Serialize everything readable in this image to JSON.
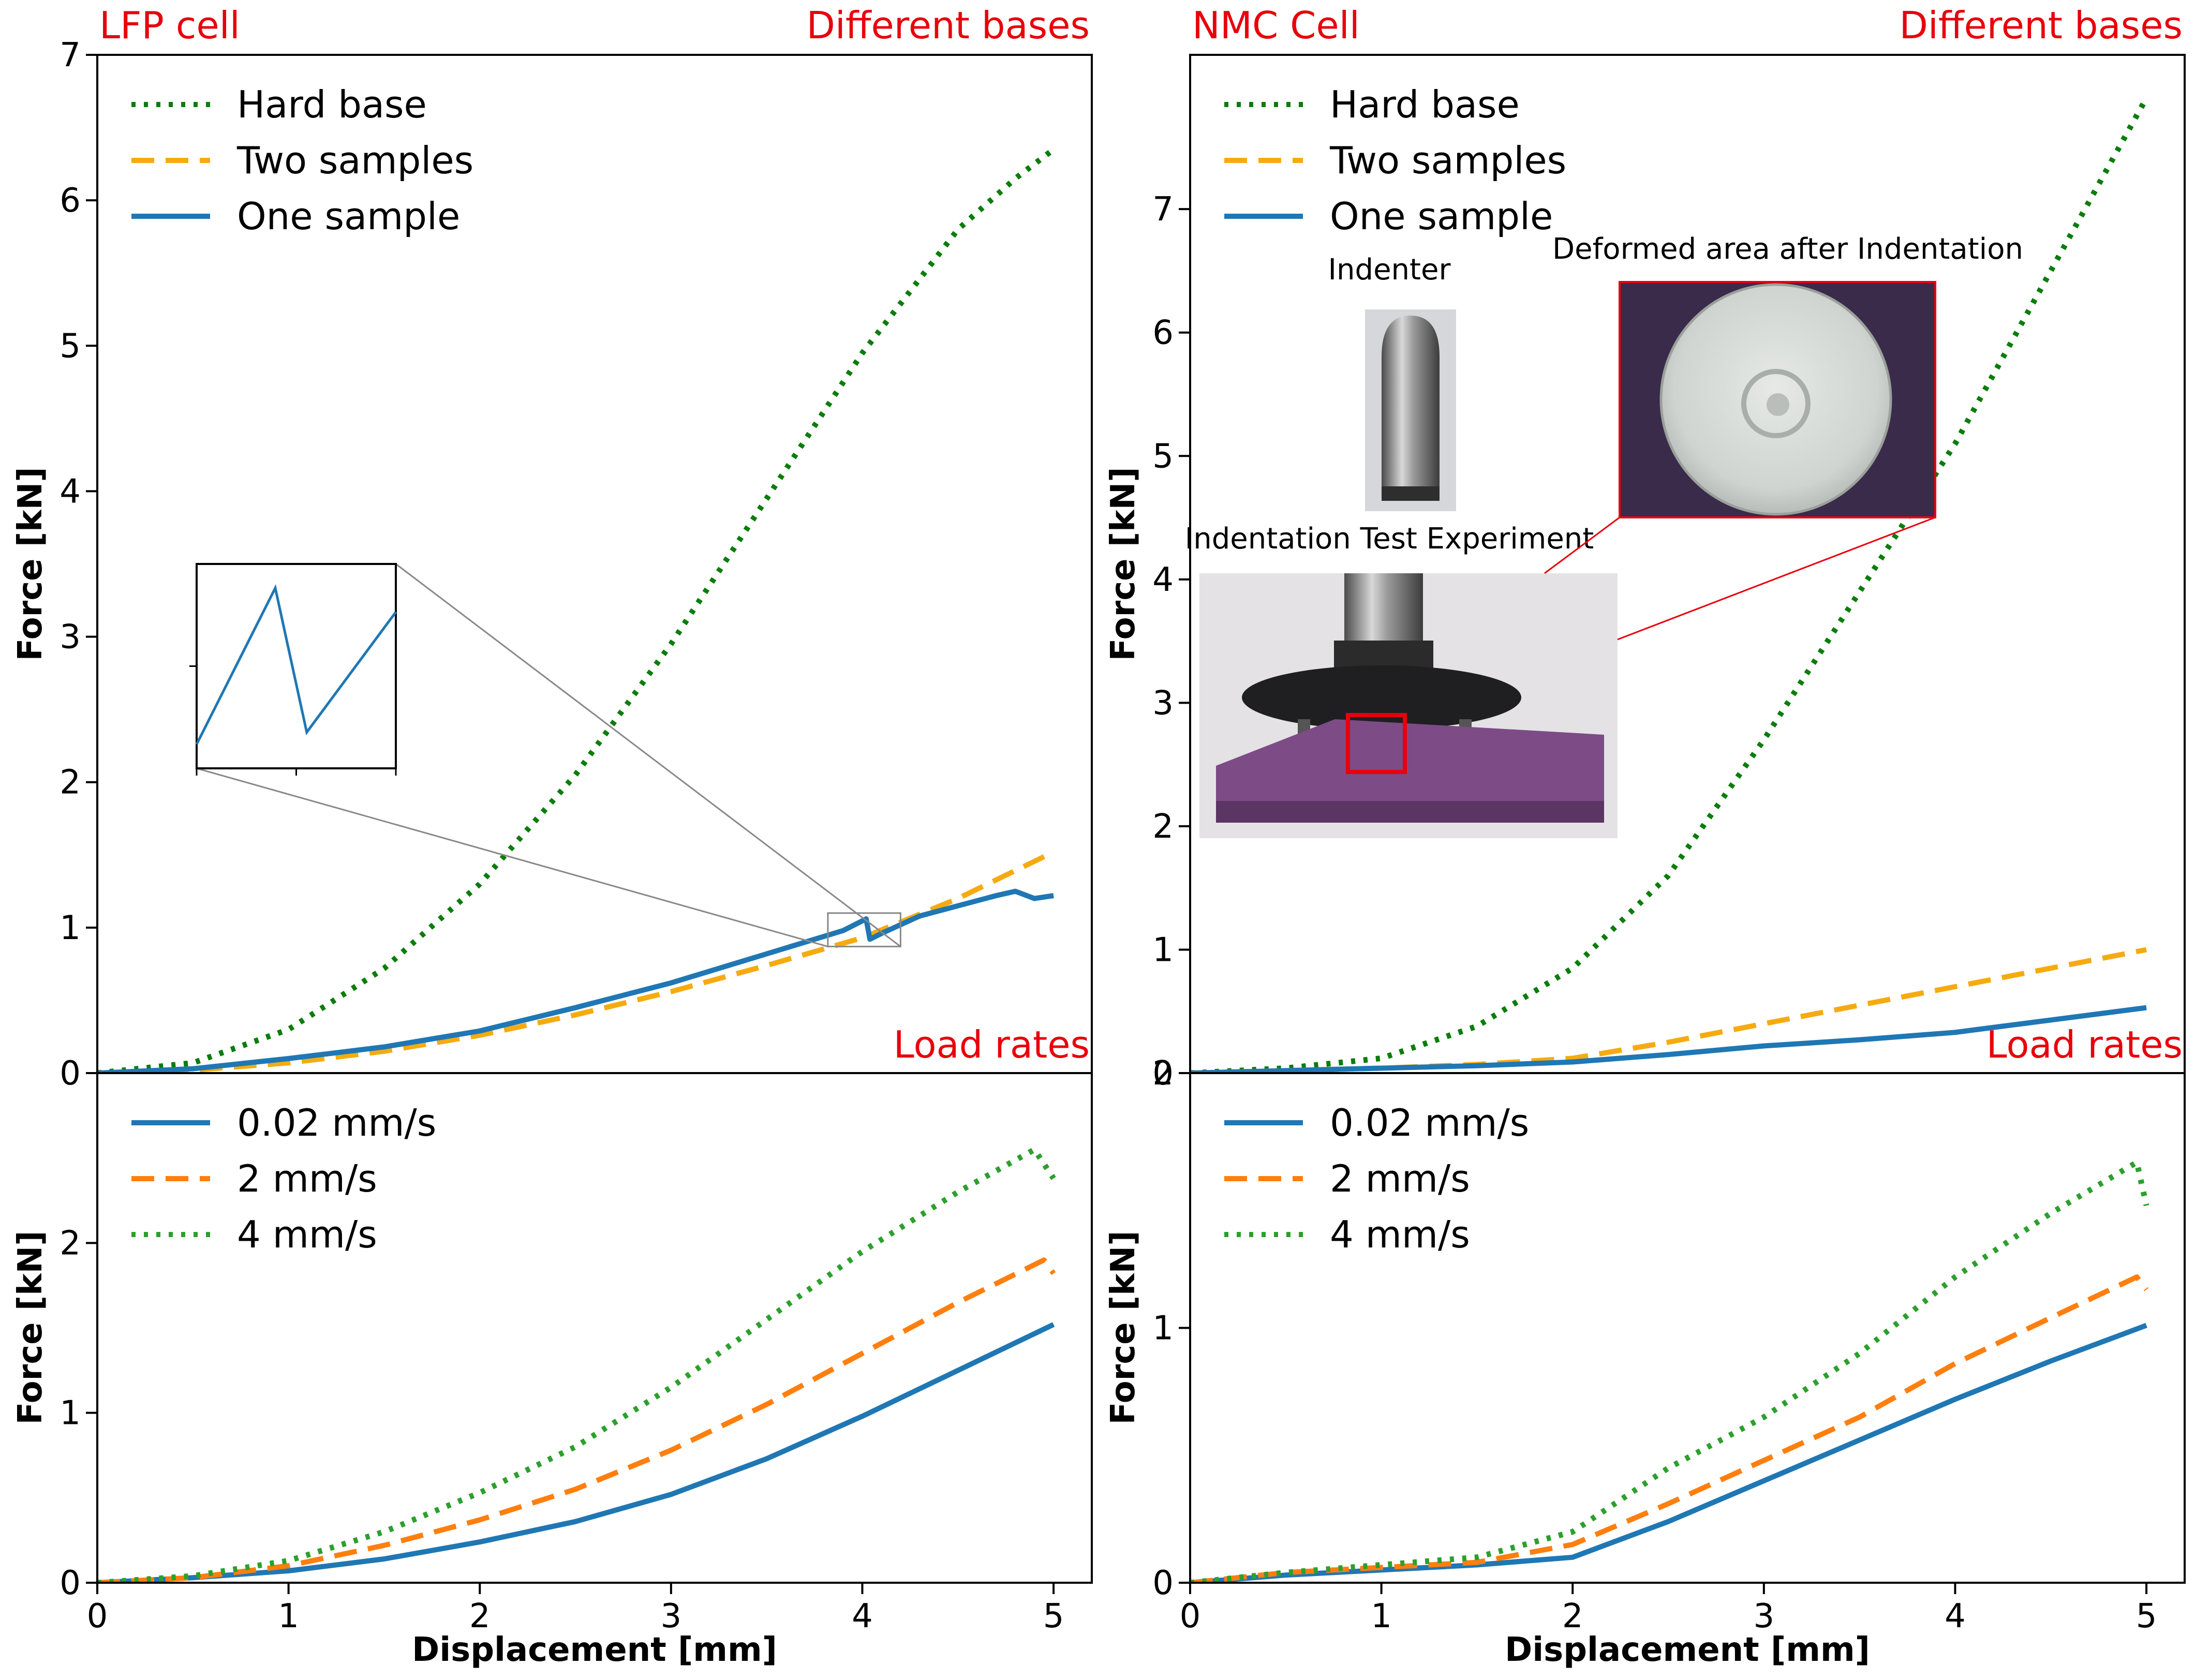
{
  "colors": {
    "hard_base": "#0a7d0a",
    "two_samples": "#f5ab10",
    "one_sample": "#1f77b4",
    "rate_002": "#1f77b4",
    "rate_2": "#ff7f0e",
    "rate_4": "#2ca02c",
    "annotation": "#e8000b"
  },
  "chart_data": [
    {
      "id": "lfp_bases",
      "type": "line",
      "corner_left": "LFP cell",
      "corner_right": "Different bases",
      "ylabel": "Force [kN]",
      "xlim": [
        0,
        5.2
      ],
      "ylim": [
        0,
        7
      ],
      "yticks": [
        0,
        1,
        2,
        3,
        4,
        5,
        6,
        7
      ],
      "legend": "top-left",
      "series": [
        {
          "name": "Hard base",
          "style": "dotted",
          "x": [
            0,
            0.5,
            1,
            1.5,
            2,
            2.5,
            3,
            3.5,
            4,
            4.5,
            4.8,
            5.0
          ],
          "y": [
            0,
            0.07,
            0.3,
            0.72,
            1.3,
            2.05,
            2.95,
            3.95,
            4.95,
            5.8,
            6.15,
            6.35
          ]
        },
        {
          "name": "Two samples",
          "style": "dashed",
          "x": [
            0,
            0.5,
            1,
            1.5,
            2,
            2.5,
            3,
            3.5,
            4,
            4.5,
            5.0
          ],
          "y": [
            0,
            0.02,
            0.07,
            0.15,
            0.26,
            0.4,
            0.56,
            0.74,
            0.93,
            1.2,
            1.52
          ]
        },
        {
          "name": "One sample",
          "style": "solid",
          "x": [
            0,
            0.5,
            1,
            1.5,
            2,
            2.5,
            3,
            3.5,
            3.9,
            4.02,
            4.04,
            4.1,
            4.3,
            4.5,
            4.7,
            4.8,
            4.9,
            5.0
          ],
          "y": [
            0,
            0.03,
            0.1,
            0.18,
            0.29,
            0.45,
            0.62,
            0.82,
            0.98,
            1.06,
            0.92,
            0.96,
            1.08,
            1.15,
            1.22,
            1.25,
            1.2,
            1.22
          ]
        }
      ],
      "inset": {
        "type": "line",
        "description_series": "One sample",
        "x": [
          3.82,
          3.97,
          4.03,
          4.2
        ],
        "y": [
          0.92,
          1.05,
          0.93,
          1.03
        ]
      }
    },
    {
      "id": "nmc_bases",
      "type": "line",
      "corner_left": "NMC Cell",
      "corner_right": "Different bases",
      "ylabel": "Force [kN]",
      "xlim": [
        0,
        5.2
      ],
      "ylim": [
        0,
        8.25
      ],
      "yticks": [
        0,
        1,
        2,
        3,
        4,
        5,
        6,
        7
      ],
      "legend": "top-left",
      "series": [
        {
          "name": "Hard base",
          "style": "dotted",
          "x": [
            0,
            0.5,
            1,
            1.5,
            2,
            2.5,
            3,
            3.5,
            4,
            4.5,
            5.0
          ],
          "y": [
            0,
            0.04,
            0.12,
            0.38,
            0.85,
            1.6,
            2.7,
            3.9,
            5.1,
            6.5,
            7.9
          ]
        },
        {
          "name": "Two samples",
          "style": "dashed",
          "x": [
            0,
            0.5,
            1,
            1.5,
            2,
            2.5,
            3,
            3.5,
            4,
            4.5,
            5.0
          ],
          "y": [
            0,
            0.02,
            0.04,
            0.07,
            0.12,
            0.25,
            0.4,
            0.55,
            0.7,
            0.85,
            1.0
          ]
        },
        {
          "name": "One sample",
          "style": "solid",
          "x": [
            0,
            0.5,
            1,
            1.5,
            2,
            2.5,
            3,
            3.5,
            4,
            4.5,
            5.0
          ],
          "y": [
            0,
            0.02,
            0.04,
            0.06,
            0.09,
            0.15,
            0.22,
            0.27,
            0.33,
            0.43,
            0.53
          ]
        }
      ],
      "photos": {
        "indenter_caption": "Indenter",
        "deformed_caption": "Deformed area after Indentation",
        "experiment_caption": "Indentation Test Experiment"
      }
    },
    {
      "id": "lfp_rates",
      "type": "line",
      "corner_right": "Load rates",
      "ylabel": "Force [kN]",
      "xlabel": "Displacement [mm]",
      "xlim": [
        0,
        5.2
      ],
      "ylim": [
        0,
        3
      ],
      "xticks": [
        0,
        1,
        2,
        3,
        4,
        5
      ],
      "yticks": [
        0,
        1,
        2
      ],
      "legend": "top-left",
      "series": [
        {
          "name": "0.02 mm/s",
          "style": "solid",
          "x": [
            0,
            0.5,
            1,
            1.5,
            2,
            2.5,
            3,
            3.5,
            4,
            4.5,
            5.0
          ],
          "y": [
            0,
            0.03,
            0.07,
            0.14,
            0.24,
            0.36,
            0.52,
            0.73,
            0.98,
            1.25,
            1.52
          ]
        },
        {
          "name": "2 mm/s",
          "style": "dashed",
          "x": [
            0,
            0.5,
            1,
            1.5,
            2,
            2.5,
            3,
            3.5,
            4,
            4.5,
            4.95,
            5.0
          ],
          "y": [
            0,
            0.03,
            0.1,
            0.22,
            0.37,
            0.55,
            0.78,
            1.05,
            1.35,
            1.65,
            1.9,
            1.82
          ]
        },
        {
          "name": "4 mm/s",
          "style": "dotted",
          "x": [
            0,
            0.5,
            1,
            1.5,
            2,
            2.5,
            3,
            3.5,
            4,
            4.5,
            4.9,
            5.0
          ],
          "y": [
            0,
            0.04,
            0.13,
            0.3,
            0.53,
            0.8,
            1.15,
            1.55,
            1.95,
            2.3,
            2.55,
            2.38
          ]
        }
      ]
    },
    {
      "id": "nmc_rates",
      "type": "line",
      "corner_right": "Load rates",
      "ylabel": "Force [kN]",
      "xlabel": "Displacement [mm]",
      "xlim": [
        0,
        5.2
      ],
      "ylim": [
        0,
        2
      ],
      "xticks": [
        0,
        1,
        2,
        3,
        4,
        5
      ],
      "yticks": [
        0,
        1,
        2
      ],
      "legend": "top-left",
      "series": [
        {
          "name": "0.02 mm/s",
          "style": "solid",
          "x": [
            0,
            0.5,
            1,
            1.5,
            2,
            2.5,
            3,
            3.5,
            4,
            4.5,
            5.0
          ],
          "y": [
            0,
            0.03,
            0.05,
            0.07,
            0.1,
            0.24,
            0.4,
            0.56,
            0.72,
            0.87,
            1.01
          ]
        },
        {
          "name": "2 mm/s",
          "style": "dashed",
          "x": [
            0,
            0.5,
            1,
            1.5,
            2,
            2.5,
            3,
            3.5,
            4,
            4.5,
            4.95,
            5.0
          ],
          "y": [
            0,
            0.04,
            0.06,
            0.08,
            0.15,
            0.31,
            0.48,
            0.65,
            0.86,
            1.04,
            1.2,
            1.15
          ]
        },
        {
          "name": "4 mm/s",
          "style": "dotted",
          "x": [
            0,
            0.5,
            1,
            1.5,
            2,
            2.5,
            3,
            3.5,
            4,
            4.5,
            4.95,
            5.0
          ],
          "y": [
            0,
            0.04,
            0.07,
            0.1,
            0.2,
            0.45,
            0.65,
            0.9,
            1.2,
            1.45,
            1.65,
            1.48
          ]
        }
      ]
    }
  ]
}
